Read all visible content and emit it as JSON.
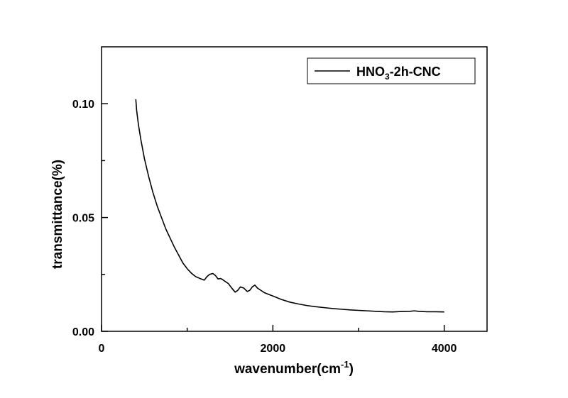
{
  "chart_data": {
    "type": "line",
    "title": "",
    "xlabel": "wavenumber(cm",
    "xlabel_sup": "-1",
    "xlabel_close": ")",
    "ylabel": "transmittance(%)",
    "xlim": [
      0,
      4500
    ],
    "ylim": [
      0,
      0.125
    ],
    "x_ticks": [
      {
        "value": 0,
        "label": "0"
      },
      {
        "value": 2000,
        "label": "2000"
      },
      {
        "value": 4000,
        "label": "4000"
      }
    ],
    "x_minor_ticks": [
      1000,
      3000
    ],
    "y_ticks": [
      {
        "value": 0.0,
        "label": "0.00"
      },
      {
        "value": 0.05,
        "label": "0.05"
      },
      {
        "value": 0.1,
        "label": "0.10"
      }
    ],
    "y_minor_ticks": [
      0.025,
      0.075
    ],
    "grid": false,
    "legend_position": "top-right",
    "series": [
      {
        "name": "HNO3-2h-CNC",
        "legend_main": "HNO",
        "legend_sub": "3",
        "legend_rest": "-2h-CNC",
        "color": "#000000",
        "x": [
          400,
          410,
          430,
          460,
          500,
          550,
          600,
          650,
          700,
          750,
          800,
          850,
          900,
          950,
          1000,
          1050,
          1100,
          1150,
          1200,
          1230,
          1260,
          1300,
          1330,
          1360,
          1390,
          1410,
          1440,
          1480,
          1520,
          1560,
          1590,
          1620,
          1660,
          1700,
          1730,
          1760,
          1790,
          1820,
          1860,
          1900,
          2000,
          2100,
          2200,
          2300,
          2400,
          2500,
          2600,
          2700,
          2800,
          2900,
          3000,
          3100,
          3200,
          3300,
          3400,
          3500,
          3600,
          3650,
          3700,
          3800,
          3900,
          4000
        ],
        "y": [
          0.102,
          0.097,
          0.091,
          0.084,
          0.076,
          0.068,
          0.061,
          0.055,
          0.05,
          0.045,
          0.041,
          0.037,
          0.0335,
          0.03,
          0.0275,
          0.0255,
          0.024,
          0.0232,
          0.0225,
          0.024,
          0.025,
          0.0254,
          0.0245,
          0.023,
          0.0232,
          0.0228,
          0.022,
          0.021,
          0.019,
          0.0172,
          0.018,
          0.0195,
          0.019,
          0.0175,
          0.018,
          0.0195,
          0.0203,
          0.019,
          0.018,
          0.017,
          0.0155,
          0.014,
          0.0128,
          0.012,
          0.0113,
          0.0108,
          0.0104,
          0.01,
          0.0097,
          0.0094,
          0.0092,
          0.009,
          0.0088,
          0.0086,
          0.0085,
          0.0087,
          0.0088,
          0.009,
          0.0088,
          0.0086,
          0.0086,
          0.0085
        ]
      }
    ]
  }
}
